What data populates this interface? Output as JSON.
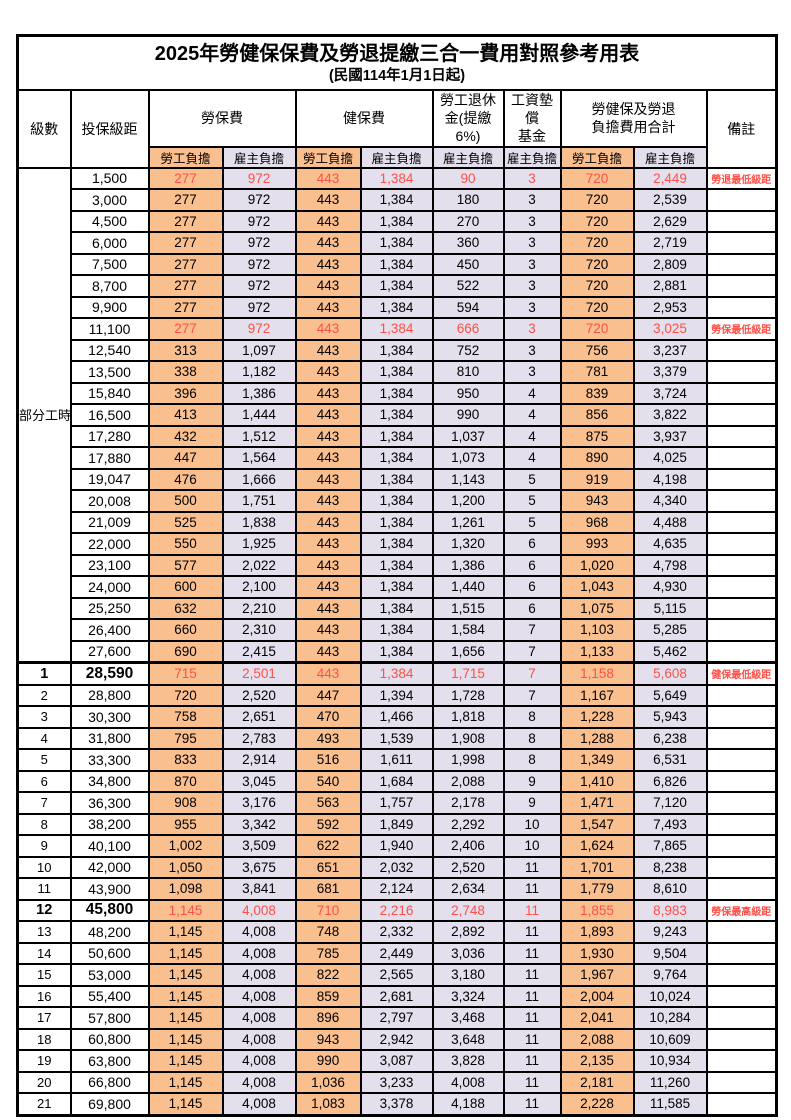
{
  "title": "2025年勞健保保費及勞退提繳三合一費用對照參考用表",
  "subtitle": "(民國114年1月1日起)",
  "colors": {
    "employee_bg": "#FABF8F",
    "employer_bg": "#E4DFEC",
    "highlight_red": "#FF4F46",
    "border": "#000000"
  },
  "header": {
    "level": "級數",
    "bracket": "投保級距",
    "labor": "勞保費",
    "health": "健保費",
    "pension": "勞工退休\n金(提繳6%)",
    "fund": "工資墊償\n基金",
    "total": "勞健保及勞退\n負擔費用合計",
    "remark": "備註",
    "employee": "勞工負擔",
    "employer": "雇主負擔"
  },
  "group_label": "部分工時",
  "group_span": 23,
  "rows": [
    {
      "level": "",
      "bracket": "1,500",
      "labor_emp": "277",
      "labor_er": "972",
      "health_emp": "443",
      "health_er": "1,384",
      "pension": "90",
      "fund": "3",
      "total_emp": "720",
      "total_er": "2,449",
      "remark": "勞退最低級距",
      "red": true,
      "bold": false
    },
    {
      "level": "",
      "bracket": "3,000",
      "labor_emp": "277",
      "labor_er": "972",
      "health_emp": "443",
      "health_er": "1,384",
      "pension": "180",
      "fund": "3",
      "total_emp": "720",
      "total_er": "2,539",
      "remark": "",
      "red": false,
      "bold": false
    },
    {
      "level": "",
      "bracket": "4,500",
      "labor_emp": "277",
      "labor_er": "972",
      "health_emp": "443",
      "health_er": "1,384",
      "pension": "270",
      "fund": "3",
      "total_emp": "720",
      "total_er": "2,629",
      "remark": "",
      "red": false,
      "bold": false
    },
    {
      "level": "",
      "bracket": "6,000",
      "labor_emp": "277",
      "labor_er": "972",
      "health_emp": "443",
      "health_er": "1,384",
      "pension": "360",
      "fund": "3",
      "total_emp": "720",
      "total_er": "2,719",
      "remark": "",
      "red": false,
      "bold": false
    },
    {
      "level": "",
      "bracket": "7,500",
      "labor_emp": "277",
      "labor_er": "972",
      "health_emp": "443",
      "health_er": "1,384",
      "pension": "450",
      "fund": "3",
      "total_emp": "720",
      "total_er": "2,809",
      "remark": "",
      "red": false,
      "bold": false
    },
    {
      "level": "",
      "bracket": "8,700",
      "labor_emp": "277",
      "labor_er": "972",
      "health_emp": "443",
      "health_er": "1,384",
      "pension": "522",
      "fund": "3",
      "total_emp": "720",
      "total_er": "2,881",
      "remark": "",
      "red": false,
      "bold": false
    },
    {
      "level": "",
      "bracket": "9,900",
      "labor_emp": "277",
      "labor_er": "972",
      "health_emp": "443",
      "health_er": "1,384",
      "pension": "594",
      "fund": "3",
      "total_emp": "720",
      "total_er": "2,953",
      "remark": "",
      "red": false,
      "bold": false
    },
    {
      "level": "",
      "bracket": "11,100",
      "labor_emp": "277",
      "labor_er": "972",
      "health_emp": "443",
      "health_er": "1,384",
      "pension": "666",
      "fund": "3",
      "total_emp": "720",
      "total_er": "3,025",
      "remark": "勞保最低級距",
      "red": true,
      "bold": false
    },
    {
      "level": "",
      "bracket": "12,540",
      "labor_emp": "313",
      "labor_er": "1,097",
      "health_emp": "443",
      "health_er": "1,384",
      "pension": "752",
      "fund": "3",
      "total_emp": "756",
      "total_er": "3,237",
      "remark": "",
      "red": false,
      "bold": false
    },
    {
      "level": "",
      "bracket": "13,500",
      "labor_emp": "338",
      "labor_er": "1,182",
      "health_emp": "443",
      "health_er": "1,384",
      "pension": "810",
      "fund": "3",
      "total_emp": "781",
      "total_er": "3,379",
      "remark": "",
      "red": false,
      "bold": false
    },
    {
      "level": "",
      "bracket": "15,840",
      "labor_emp": "396",
      "labor_er": "1,386",
      "health_emp": "443",
      "health_er": "1,384",
      "pension": "950",
      "fund": "4",
      "total_emp": "839",
      "total_er": "3,724",
      "remark": "",
      "red": false,
      "bold": false
    },
    {
      "level": "",
      "bracket": "16,500",
      "labor_emp": "413",
      "labor_er": "1,444",
      "health_emp": "443",
      "health_er": "1,384",
      "pension": "990",
      "fund": "4",
      "total_emp": "856",
      "total_er": "3,822",
      "remark": "",
      "red": false,
      "bold": false
    },
    {
      "level": "",
      "bracket": "17,280",
      "labor_emp": "432",
      "labor_er": "1,512",
      "health_emp": "443",
      "health_er": "1,384",
      "pension": "1,037",
      "fund": "4",
      "total_emp": "875",
      "total_er": "3,937",
      "remark": "",
      "red": false,
      "bold": false
    },
    {
      "level": "",
      "bracket": "17,880",
      "labor_emp": "447",
      "labor_er": "1,564",
      "health_emp": "443",
      "health_er": "1,384",
      "pension": "1,073",
      "fund": "4",
      "total_emp": "890",
      "total_er": "4,025",
      "remark": "",
      "red": false,
      "bold": false
    },
    {
      "level": "",
      "bracket": "19,047",
      "labor_emp": "476",
      "labor_er": "1,666",
      "health_emp": "443",
      "health_er": "1,384",
      "pension": "1,143",
      "fund": "5",
      "total_emp": "919",
      "total_er": "4,198",
      "remark": "",
      "red": false,
      "bold": false
    },
    {
      "level": "",
      "bracket": "20,008",
      "labor_emp": "500",
      "labor_er": "1,751",
      "health_emp": "443",
      "health_er": "1,384",
      "pension": "1,200",
      "fund": "5",
      "total_emp": "943",
      "total_er": "4,340",
      "remark": "",
      "red": false,
      "bold": false
    },
    {
      "level": "",
      "bracket": "21,009",
      "labor_emp": "525",
      "labor_er": "1,838",
      "health_emp": "443",
      "health_er": "1,384",
      "pension": "1,261",
      "fund": "5",
      "total_emp": "968",
      "total_er": "4,488",
      "remark": "",
      "red": false,
      "bold": false
    },
    {
      "level": "",
      "bracket": "22,000",
      "labor_emp": "550",
      "labor_er": "1,925",
      "health_emp": "443",
      "health_er": "1,384",
      "pension": "1,320",
      "fund": "6",
      "total_emp": "993",
      "total_er": "4,635",
      "remark": "",
      "red": false,
      "bold": false
    },
    {
      "level": "",
      "bracket": "23,100",
      "labor_emp": "577",
      "labor_er": "2,022",
      "health_emp": "443",
      "health_er": "1,384",
      "pension": "1,386",
      "fund": "6",
      "total_emp": "1,020",
      "total_er": "4,798",
      "remark": "",
      "red": false,
      "bold": false
    },
    {
      "level": "",
      "bracket": "24,000",
      "labor_emp": "600",
      "labor_er": "2,100",
      "health_emp": "443",
      "health_er": "1,384",
      "pension": "1,440",
      "fund": "6",
      "total_emp": "1,043",
      "total_er": "4,930",
      "remark": "",
      "red": false,
      "bold": false
    },
    {
      "level": "",
      "bracket": "25,250",
      "labor_emp": "632",
      "labor_er": "2,210",
      "health_emp": "443",
      "health_er": "1,384",
      "pension": "1,515",
      "fund": "6",
      "total_emp": "1,075",
      "total_er": "5,115",
      "remark": "",
      "red": false,
      "bold": false
    },
    {
      "level": "",
      "bracket": "26,400",
      "labor_emp": "660",
      "labor_er": "2,310",
      "health_emp": "443",
      "health_er": "1,384",
      "pension": "1,584",
      "fund": "7",
      "total_emp": "1,103",
      "total_er": "5,285",
      "remark": "",
      "red": false,
      "bold": false
    },
    {
      "level": "",
      "bracket": "27,600",
      "labor_emp": "690",
      "labor_er": "2,415",
      "health_emp": "443",
      "health_er": "1,384",
      "pension": "1,656",
      "fund": "7",
      "total_emp": "1,133",
      "total_er": "5,462",
      "remark": "",
      "red": false,
      "bold": false
    },
    {
      "level": "1",
      "bracket": "28,590",
      "labor_emp": "715",
      "labor_er": "2,501",
      "health_emp": "443",
      "health_er": "1,384",
      "pension": "1,715",
      "fund": "7",
      "total_emp": "1,158",
      "total_er": "5,608",
      "remark": "健保最低級距",
      "red": true,
      "bold": true
    },
    {
      "level": "2",
      "bracket": "28,800",
      "labor_emp": "720",
      "labor_er": "2,520",
      "health_emp": "447",
      "health_er": "1,394",
      "pension": "1,728",
      "fund": "7",
      "total_emp": "1,167",
      "total_er": "5,649",
      "remark": "",
      "red": false,
      "bold": false
    },
    {
      "level": "3",
      "bracket": "30,300",
      "labor_emp": "758",
      "labor_er": "2,651",
      "health_emp": "470",
      "health_er": "1,466",
      "pension": "1,818",
      "fund": "8",
      "total_emp": "1,228",
      "total_er": "5,943",
      "remark": "",
      "red": false,
      "bold": false
    },
    {
      "level": "4",
      "bracket": "31,800",
      "labor_emp": "795",
      "labor_er": "2,783",
      "health_emp": "493",
      "health_er": "1,539",
      "pension": "1,908",
      "fund": "8",
      "total_emp": "1,288",
      "total_er": "6,238",
      "remark": "",
      "red": false,
      "bold": false
    },
    {
      "level": "5",
      "bracket": "33,300",
      "labor_emp": "833",
      "labor_er": "2,914",
      "health_emp": "516",
      "health_er": "1,611",
      "pension": "1,998",
      "fund": "8",
      "total_emp": "1,349",
      "total_er": "6,531",
      "remark": "",
      "red": false,
      "bold": false
    },
    {
      "level": "6",
      "bracket": "34,800",
      "labor_emp": "870",
      "labor_er": "3,045",
      "health_emp": "540",
      "health_er": "1,684",
      "pension": "2,088",
      "fund": "9",
      "total_emp": "1,410",
      "total_er": "6,826",
      "remark": "",
      "red": false,
      "bold": false
    },
    {
      "level": "7",
      "bracket": "36,300",
      "labor_emp": "908",
      "labor_er": "3,176",
      "health_emp": "563",
      "health_er": "1,757",
      "pension": "2,178",
      "fund": "9",
      "total_emp": "1,471",
      "total_er": "7,120",
      "remark": "",
      "red": false,
      "bold": false
    },
    {
      "level": "8",
      "bracket": "38,200",
      "labor_emp": "955",
      "labor_er": "3,342",
      "health_emp": "592",
      "health_er": "1,849",
      "pension": "2,292",
      "fund": "10",
      "total_emp": "1,547",
      "total_er": "7,493",
      "remark": "",
      "red": false,
      "bold": false
    },
    {
      "level": "9",
      "bracket": "40,100",
      "labor_emp": "1,002",
      "labor_er": "3,509",
      "health_emp": "622",
      "health_er": "1,940",
      "pension": "2,406",
      "fund": "10",
      "total_emp": "1,624",
      "total_er": "7,865",
      "remark": "",
      "red": false,
      "bold": false
    },
    {
      "level": "10",
      "bracket": "42,000",
      "labor_emp": "1,050",
      "labor_er": "3,675",
      "health_emp": "651",
      "health_er": "2,032",
      "pension": "2,520",
      "fund": "11",
      "total_emp": "1,701",
      "total_er": "8,238",
      "remark": "",
      "red": false,
      "bold": false
    },
    {
      "level": "11",
      "bracket": "43,900",
      "labor_emp": "1,098",
      "labor_er": "3,841",
      "health_emp": "681",
      "health_er": "2,124",
      "pension": "2,634",
      "fund": "11",
      "total_emp": "1,779",
      "total_er": "8,610",
      "remark": "",
      "red": false,
      "bold": false
    },
    {
      "level": "12",
      "bracket": "45,800",
      "labor_emp": "1,145",
      "labor_er": "4,008",
      "health_emp": "710",
      "health_er": "2,216",
      "pension": "2,748",
      "fund": "11",
      "total_emp": "1,855",
      "total_er": "8,983",
      "remark": "勞保最高級距",
      "red": true,
      "bold": true
    },
    {
      "level": "13",
      "bracket": "48,200",
      "labor_emp": "1,145",
      "labor_er": "4,008",
      "health_emp": "748",
      "health_er": "2,332",
      "pension": "2,892",
      "fund": "11",
      "total_emp": "1,893",
      "total_er": "9,243",
      "remark": "",
      "red": false,
      "bold": false
    },
    {
      "level": "14",
      "bracket": "50,600",
      "labor_emp": "1,145",
      "labor_er": "4,008",
      "health_emp": "785",
      "health_er": "2,449",
      "pension": "3,036",
      "fund": "11",
      "total_emp": "1,930",
      "total_er": "9,504",
      "remark": "",
      "red": false,
      "bold": false
    },
    {
      "level": "15",
      "bracket": "53,000",
      "labor_emp": "1,145",
      "labor_er": "4,008",
      "health_emp": "822",
      "health_er": "2,565",
      "pension": "3,180",
      "fund": "11",
      "total_emp": "1,967",
      "total_er": "9,764",
      "remark": "",
      "red": false,
      "bold": false
    },
    {
      "level": "16",
      "bracket": "55,400",
      "labor_emp": "1,145",
      "labor_er": "4,008",
      "health_emp": "859",
      "health_er": "2,681",
      "pension": "3,324",
      "fund": "11",
      "total_emp": "2,004",
      "total_er": "10,024",
      "remark": "",
      "red": false,
      "bold": false
    },
    {
      "level": "17",
      "bracket": "57,800",
      "labor_emp": "1,145",
      "labor_er": "4,008",
      "health_emp": "896",
      "health_er": "2,797",
      "pension": "3,468",
      "fund": "11",
      "total_emp": "2,041",
      "total_er": "10,284",
      "remark": "",
      "red": false,
      "bold": false
    },
    {
      "level": "18",
      "bracket": "60,800",
      "labor_emp": "1,145",
      "labor_er": "4,008",
      "health_emp": "943",
      "health_er": "2,942",
      "pension": "3,648",
      "fund": "11",
      "total_emp": "2,088",
      "total_er": "10,609",
      "remark": "",
      "red": false,
      "bold": false
    },
    {
      "level": "19",
      "bracket": "63,800",
      "labor_emp": "1,145",
      "labor_er": "4,008",
      "health_emp": "990",
      "health_er": "3,087",
      "pension": "3,828",
      "fund": "11",
      "total_emp": "2,135",
      "total_er": "10,934",
      "remark": "",
      "red": false,
      "bold": false
    },
    {
      "level": "20",
      "bracket": "66,800",
      "labor_emp": "1,145",
      "labor_er": "4,008",
      "health_emp": "1,036",
      "health_er": "3,233",
      "pension": "4,008",
      "fund": "11",
      "total_emp": "2,181",
      "total_er": "11,260",
      "remark": "",
      "red": false,
      "bold": false
    },
    {
      "level": "21",
      "bracket": "69,800",
      "labor_emp": "1,145",
      "labor_er": "4,008",
      "health_emp": "1,083",
      "health_er": "3,378",
      "pension": "4,188",
      "fund": "11",
      "total_emp": "2,228",
      "total_er": "11,585",
      "remark": "",
      "red": false,
      "bold": false
    }
  ]
}
